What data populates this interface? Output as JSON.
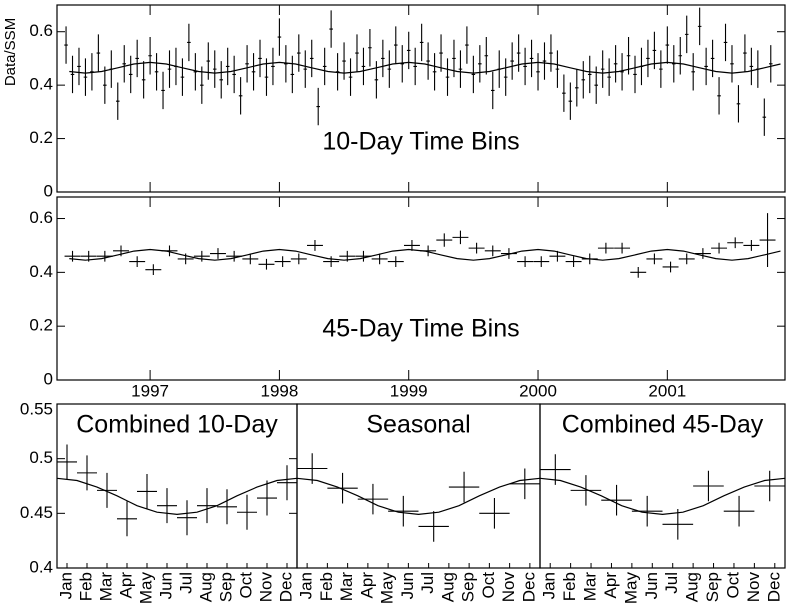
{
  "chart_data": [
    {
      "type": "scatter",
      "title": "10-Day Time Bins",
      "ylabel": "Data/SSM",
      "xlim": [
        1996.28,
        2001.91
      ],
      "xticks": [
        1997,
        1998,
        1999,
        2000,
        2001
      ],
      "ylim": [
        0,
        0.7
      ],
      "yticks": [
        0,
        0.2,
        0.4,
        0.6
      ],
      "series": [
        {
          "mode": "points",
          "color": "#000000",
          "error": 0.07,
          "xerr": 0.0137,
          "x": [
            1996.35,
            1996.4,
            1996.45,
            1996.5,
            1996.55,
            1996.6,
            1996.65,
            1996.7,
            1996.75,
            1996.8,
            1996.85,
            1996.9,
            1996.95,
            1997.0,
            1997.05,
            1997.1,
            1997.15,
            1997.2,
            1997.25,
            1997.3,
            1997.35,
            1997.4,
            1997.45,
            1997.5,
            1997.55,
            1997.6,
            1997.65,
            1997.7,
            1997.75,
            1997.8,
            1997.85,
            1997.9,
            1997.95,
            1998.0,
            1998.05,
            1998.1,
            1998.15,
            1998.2,
            1998.25,
            1998.3,
            1998.35,
            1998.4,
            1998.45,
            1998.5,
            1998.55,
            1998.6,
            1998.65,
            1998.7,
            1998.75,
            1998.8,
            1998.85,
            1998.9,
            1998.95,
            1999.0,
            1999.05,
            1999.1,
            1999.15,
            1999.2,
            1999.25,
            1999.3,
            1999.35,
            1999.4,
            1999.45,
            1999.5,
            1999.55,
            1999.6,
            1999.65,
            1999.7,
            1999.75,
            1999.8,
            1999.85,
            1999.9,
            1999.95,
            2000.0,
            2000.05,
            2000.1,
            2000.15,
            2000.2,
            2000.25,
            2000.3,
            2000.35,
            2000.4,
            2000.45,
            2000.5,
            2000.55,
            2000.6,
            2000.65,
            2000.7,
            2000.75,
            2000.8,
            2000.85,
            2000.9,
            2000.95,
            2001.0,
            2001.05,
            2001.1,
            2001.15,
            2001.2,
            2001.25,
            2001.3,
            2001.35,
            2001.4,
            2001.45,
            2001.5,
            2001.55,
            2001.6,
            2001.65,
            2001.7,
            2001.75,
            2001.8
          ],
          "values": [
            0.55,
            0.44,
            0.47,
            0.43,
            0.45,
            0.52,
            0.4,
            0.46,
            0.34,
            0.48,
            0.44,
            0.5,
            0.42,
            0.51,
            0.45,
            0.38,
            0.46,
            0.47,
            0.43,
            0.56,
            0.45,
            0.4,
            0.49,
            0.46,
            0.42,
            0.47,
            0.44,
            0.36,
            0.48,
            0.45,
            0.5,
            0.43,
            0.47,
            0.58,
            0.48,
            0.44,
            0.52,
            0.46,
            0.5,
            0.32,
            0.47,
            0.61,
            0.45,
            0.49,
            0.43,
            0.52,
            0.47,
            0.54,
            0.42,
            0.5,
            0.46,
            0.55,
            0.48,
            0.53,
            0.47,
            0.56,
            0.49,
            0.45,
            0.52,
            0.43,
            0.5,
            0.46,
            0.55,
            0.44,
            0.48,
            0.51,
            0.38,
            0.46,
            0.43,
            0.49,
            0.52,
            0.47,
            0.5,
            0.45,
            0.49,
            0.52,
            0.46,
            0.37,
            0.34,
            0.39,
            0.42,
            0.44,
            0.4,
            0.46,
            0.43,
            0.48,
            0.45,
            0.51,
            0.44,
            0.47,
            0.5,
            0.53,
            0.46,
            0.55,
            0.48,
            0.51,
            0.59,
            0.45,
            0.62,
            0.47,
            0.5,
            0.36,
            0.56,
            0.48,
            0.33,
            0.52,
            0.47,
            0.46,
            0.28,
            0.48
          ]
        },
        {
          "mode": "line",
          "color": "#000000",
          "x": [
            1996.375,
            1996.5,
            1996.625,
            1996.75,
            1996.875,
            1997.0,
            1997.125,
            1997.25,
            1997.375,
            1997.5,
            1997.625,
            1997.75,
            1997.875,
            1998.0,
            1998.125,
            1998.25,
            1998.375,
            1998.5,
            1998.625,
            1998.75,
            1998.875,
            1999.0,
            1999.125,
            1999.25,
            1999.375,
            1999.5,
            1999.625,
            1999.75,
            1999.875,
            2000.0,
            2000.125,
            2000.25,
            2000.375,
            2000.5,
            2000.625,
            2000.75,
            2000.875,
            2001.0,
            2001.125,
            2001.25,
            2001.375,
            2001.5,
            2001.625,
            2001.75,
            2001.875
          ],
          "values": [
            0.451,
            0.445,
            0.451,
            0.465,
            0.479,
            0.485,
            0.479,
            0.465,
            0.451,
            0.445,
            0.451,
            0.465,
            0.479,
            0.485,
            0.479,
            0.465,
            0.451,
            0.445,
            0.451,
            0.465,
            0.479,
            0.485,
            0.479,
            0.465,
            0.451,
            0.445,
            0.451,
            0.465,
            0.479,
            0.485,
            0.479,
            0.465,
            0.451,
            0.445,
            0.451,
            0.465,
            0.479,
            0.485,
            0.479,
            0.465,
            0.451,
            0.445,
            0.451,
            0.465,
            0.479
          ]
        }
      ]
    },
    {
      "type": "scatter",
      "title": "45-Day Time Bins",
      "xlim": [
        1996.28,
        2001.91
      ],
      "xticks": [
        1997,
        1998,
        1999,
        2000,
        2001
      ],
      "ylim": [
        0,
        0.68
      ],
      "yticks": [
        0,
        0.2,
        0.4,
        0.6
      ],
      "series": [
        {
          "mode": "points",
          "color": "#000000",
          "xerr": 0.0616,
          "errors": [
            0.02,
            0.02,
            0.02,
            0.02,
            0.02,
            0.02,
            0.02,
            0.02,
            0.02,
            0.02,
            0.02,
            0.02,
            0.02,
            0.02,
            0.02,
            0.02,
            0.02,
            0.02,
            0.02,
            0.02,
            0.02,
            0.02,
            0.02,
            0.025,
            0.025,
            0.02,
            0.02,
            0.02,
            0.02,
            0.02,
            0.02,
            0.02,
            0.02,
            0.02,
            0.02,
            0.02,
            0.02,
            0.02,
            0.02,
            0.02,
            0.02,
            0.02,
            0.02,
            0.1
          ],
          "x": [
            1996.4,
            1996.525,
            1996.65,
            1996.775,
            1996.9,
            1997.025,
            1997.15,
            1997.275,
            1997.4,
            1997.525,
            1997.65,
            1997.775,
            1997.9,
            1998.025,
            1998.15,
            1998.275,
            1998.4,
            1998.525,
            1998.65,
            1998.775,
            1998.9,
            1999.025,
            1999.15,
            1999.275,
            1999.4,
            1999.525,
            1999.65,
            1999.775,
            1999.9,
            2000.025,
            2000.15,
            2000.275,
            2000.4,
            2000.525,
            2000.65,
            2000.775,
            2000.9,
            2001.025,
            2001.15,
            2001.275,
            2001.4,
            2001.525,
            2001.65,
            2001.775
          ],
          "values": [
            0.46,
            0.46,
            0.46,
            0.48,
            0.44,
            0.41,
            0.48,
            0.45,
            0.46,
            0.47,
            0.46,
            0.45,
            0.43,
            0.44,
            0.45,
            0.5,
            0.44,
            0.46,
            0.46,
            0.45,
            0.44,
            0.5,
            0.48,
            0.52,
            0.53,
            0.49,
            0.48,
            0.47,
            0.44,
            0.44,
            0.46,
            0.44,
            0.45,
            0.49,
            0.49,
            0.4,
            0.45,
            0.42,
            0.45,
            0.47,
            0.49,
            0.51,
            0.5,
            0.52
          ]
        },
        {
          "mode": "line",
          "color": "#000000",
          "x": [
            1996.375,
            1996.5,
            1996.625,
            1996.75,
            1996.875,
            1997.0,
            1997.125,
            1997.25,
            1997.375,
            1997.5,
            1997.625,
            1997.75,
            1997.875,
            1998.0,
            1998.125,
            1998.25,
            1998.375,
            1998.5,
            1998.625,
            1998.75,
            1998.875,
            1999.0,
            1999.125,
            1999.25,
            1999.375,
            1999.5,
            1999.625,
            1999.75,
            1999.875,
            2000.0,
            2000.125,
            2000.25,
            2000.375,
            2000.5,
            2000.625,
            2000.75,
            2000.875,
            2001.0,
            2001.125,
            2001.25,
            2001.375,
            2001.5,
            2001.625,
            2001.75,
            2001.875
          ],
          "values": [
            0.451,
            0.445,
            0.451,
            0.465,
            0.479,
            0.485,
            0.479,
            0.465,
            0.451,
            0.445,
            0.451,
            0.465,
            0.479,
            0.485,
            0.479,
            0.465,
            0.451,
            0.445,
            0.451,
            0.465,
            0.479,
            0.485,
            0.479,
            0.465,
            0.451,
            0.445,
            0.451,
            0.465,
            0.479,
            0.485,
            0.479,
            0.465,
            0.451,
            0.445,
            0.451,
            0.465,
            0.479,
            0.485,
            0.479,
            0.465,
            0.451,
            0.445,
            0.451,
            0.465,
            0.479
          ]
        }
      ]
    },
    {
      "type": "scatter",
      "title": "Combined 10-Day",
      "categories": [
        "Jan",
        "Feb",
        "Mar",
        "Apr",
        "May",
        "Jun",
        "Jul",
        "Aug",
        "Sep",
        "Oct",
        "Nov",
        "Dec"
      ],
      "xlim": [
        0,
        12
      ],
      "ylim": [
        0.4,
        0.55
      ],
      "yticks": [
        0.4,
        0.45,
        0.5,
        0.55
      ],
      "series": [
        {
          "mode": "points",
          "color": "#000000",
          "error": 0.016,
          "xerr": 0.5,
          "x": [
            0.5,
            1.5,
            2.5,
            3.5,
            4.5,
            5.5,
            6.5,
            7.5,
            8.5,
            9.5,
            10.5,
            11.5
          ],
          "values": [
            0.497,
            0.487,
            0.471,
            0.445,
            0.47,
            0.457,
            0.446,
            0.457,
            0.456,
            0.451,
            0.464,
            0.478
          ]
        },
        {
          "mode": "line",
          "color": "#000000",
          "x": [
            0,
            1,
            2,
            3,
            4,
            5,
            6,
            7,
            8,
            9,
            10,
            11,
            12
          ],
          "values": [
            0.482,
            0.48,
            0.474,
            0.466,
            0.457,
            0.451,
            0.449,
            0.451,
            0.457,
            0.466,
            0.474,
            0.48,
            0.482
          ]
        }
      ]
    },
    {
      "type": "scatter",
      "title": "Seasonal",
      "categories": [
        "Jan",
        "Feb",
        "Mar",
        "Apr",
        "May",
        "Jun",
        "Jul",
        "Aug",
        "Sep",
        "Oct",
        "Nov",
        "Dec"
      ],
      "xlim": [
        0,
        12
      ],
      "ylim": [
        0.4,
        0.55
      ],
      "series": [
        {
          "mode": "points",
          "color": "#000000",
          "error": 0.014,
          "xerr": 0.75,
          "x": [
            0.75,
            2.25,
            3.75,
            5.25,
            6.75,
            8.25,
            9.75,
            11.25
          ],
          "values": [
            0.491,
            0.473,
            0.463,
            0.452,
            0.438,
            0.474,
            0.45,
            0.477
          ]
        },
        {
          "mode": "line",
          "color": "#000000",
          "x": [
            0,
            1,
            2,
            3,
            4,
            5,
            6,
            7,
            8,
            9,
            10,
            11,
            12
          ],
          "values": [
            0.482,
            0.48,
            0.474,
            0.466,
            0.457,
            0.451,
            0.449,
            0.451,
            0.457,
            0.466,
            0.474,
            0.48,
            0.482
          ]
        }
      ]
    },
    {
      "type": "scatter",
      "title": "Combined 45-Day",
      "categories": [
        "Jan",
        "Feb",
        "Mar",
        "Apr",
        "May",
        "Jun",
        "Jul",
        "Aug",
        "Sep",
        "Oct",
        "Nov",
        "Dec"
      ],
      "xlim": [
        0,
        12
      ],
      "ylim": [
        0.4,
        0.55
      ],
      "series": [
        {
          "mode": "points",
          "color": "#000000",
          "error": 0.014,
          "xerr": 0.75,
          "x": [
            0.75,
            2.25,
            3.75,
            5.25,
            6.75,
            8.25,
            9.75,
            11.25
          ],
          "values": [
            0.49,
            0.471,
            0.462,
            0.452,
            0.44,
            0.475,
            0.452,
            0.475
          ]
        },
        {
          "mode": "line",
          "color": "#000000",
          "x": [
            0,
            1,
            2,
            3,
            4,
            5,
            6,
            7,
            8,
            9,
            10,
            11,
            12
          ],
          "values": [
            0.482,
            0.48,
            0.474,
            0.466,
            0.457,
            0.451,
            0.449,
            0.451,
            0.457,
            0.466,
            0.474,
            0.48,
            0.482
          ]
        }
      ]
    }
  ]
}
